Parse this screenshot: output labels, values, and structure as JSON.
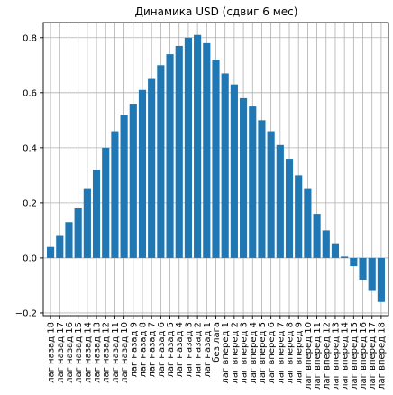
{
  "chart_data": {
    "type": "bar",
    "title": "Динамика USD (сдвиг 6 мес)",
    "xlabel": "",
    "ylabel": "",
    "ylim": [
      -0.21,
      0.855
    ],
    "yticks": [
      "−0.2",
      "0.0",
      "0.2",
      "0.4",
      "0.6",
      "0.8"
    ],
    "ytick_values": [
      -0.2,
      0.0,
      0.2,
      0.4,
      0.6,
      0.8
    ],
    "grid": true,
    "bar_color": "#1f77b4",
    "categories": [
      "лаг назад 18",
      "лаг назад 17",
      "лаг назад 16",
      "лаг назад 15",
      "лаг назад 14",
      "лаг назад 13",
      "лаг назад 12",
      "лаг назад 11",
      "лаг назад 10",
      "лаг назад 9",
      "лаг назад 8",
      "лаг назад 7",
      "лаг назад 6",
      "лаг назад 5",
      "лаг назад 4",
      "лаг назад 3",
      "лаг назад 2",
      "лаг назад 1",
      "без лага",
      "лаг вперед 1",
      "лаг вперед 2",
      "лаг вперед 3",
      "лаг вперед 4",
      "лаг вперед 5",
      "лаг вперед 6",
      "лаг вперед 7",
      "лаг вперед 8",
      "лаг вперед 9",
      "лаг вперед 10",
      "лаг вперед 11",
      "лаг вперед 12",
      "лаг вперед 13",
      "лаг вперед 14",
      "лаг вперед 15",
      "лаг вперед 16",
      "лаг вперед 17",
      "лаг вперед 18"
    ],
    "values": [
      0.04,
      0.08,
      0.13,
      0.18,
      0.25,
      0.32,
      0.4,
      0.46,
      0.52,
      0.56,
      0.61,
      0.65,
      0.7,
      0.74,
      0.77,
      0.8,
      0.81,
      0.78,
      0.72,
      0.67,
      0.63,
      0.58,
      0.55,
      0.5,
      0.46,
      0.41,
      0.36,
      0.3,
      0.25,
      0.16,
      0.1,
      0.05,
      0.005,
      -0.03,
      -0.08,
      -0.12,
      -0.16
    ]
  }
}
